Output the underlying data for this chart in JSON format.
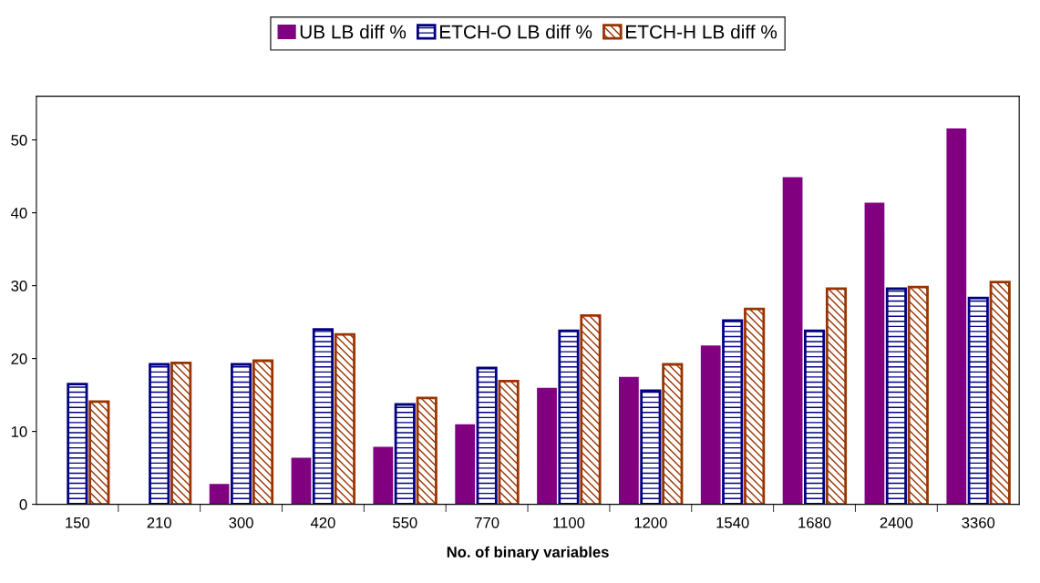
{
  "chart_data": {
    "type": "bar",
    "xlabel": "No. of binary variables",
    "categories": [
      "150",
      "210",
      "300",
      "420",
      "550",
      "770",
      "1100",
      "1200",
      "1540",
      "1680",
      "2400",
      "3360"
    ],
    "series": [
      {
        "name": "UB LB diff %",
        "color": "#800080",
        "values": [
          0,
          0,
          2.7,
          6.3,
          7.8,
          10.9,
          15.9,
          17.4,
          21.7,
          44.8,
          41.3,
          51.5
        ]
      },
      {
        "name": "ETCH-O LB diff %",
        "color": "#000080",
        "values": [
          16.5,
          19.2,
          19.2,
          24.0,
          13.7,
          18.7,
          23.8,
          15.6,
          25.2,
          23.8,
          29.6,
          28.3
        ]
      },
      {
        "name": "ETCH-H LB diff %",
        "color": "#993300",
        "values": [
          14.1,
          19.4,
          19.7,
          23.3,
          14.6,
          16.9,
          25.9,
          19.2,
          26.8,
          29.6,
          29.8,
          30.5
        ]
      }
    ],
    "ylim": [
      0,
      56
    ],
    "yticks": [
      0,
      10,
      20,
      30,
      40,
      50
    ],
    "grid": false,
    "legend": "top"
  }
}
